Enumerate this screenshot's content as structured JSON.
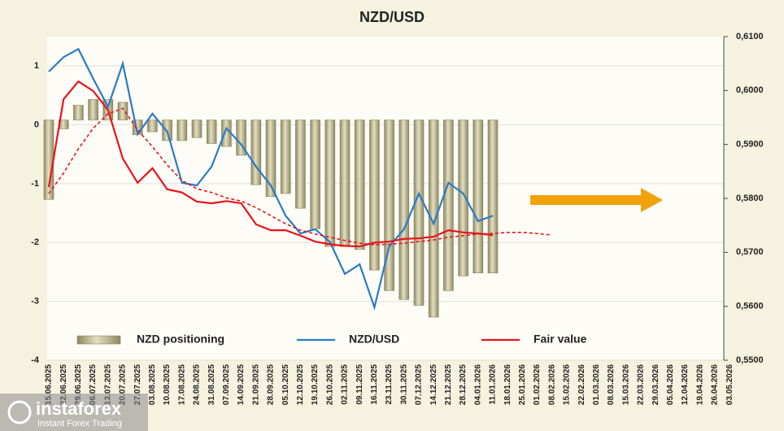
{
  "chart_data": {
    "type": "bar",
    "title": "NZD/USD",
    "categories": [
      "15.06.2025",
      "22.06.2025",
      "29.06.2025",
      "06.07.2025",
      "13.07.2025",
      "20.07.2025",
      "27.07.2025",
      "03.08.2025",
      "10.08.2025",
      "17.08.2025",
      "24.08.2025",
      "31.08.2025",
      "07.09.2025",
      "14.09.2025",
      "21.09.2025",
      "28.09.2025",
      "05.10.2025",
      "12.10.2025",
      "19.10.2025",
      "26.10.2025",
      "02.11.2025",
      "09.11.2025",
      "16.11.2025",
      "23.11.2025",
      "30.11.2025",
      "07.12.2025",
      "14.12.2025",
      "21.12.2025",
      "28.12.2025",
      "04.01.2026",
      "11.01.2026",
      "18.01.2026",
      "25.01.2026",
      "01.02.2026",
      "08.02.2026",
      "15.02.2026",
      "22.02.2026",
      "01.03.2026",
      "08.03.2026",
      "15.03.2026",
      "22.03.2026",
      "29.03.2026",
      "05.04.2026",
      "12.04.2026",
      "19.04.2026",
      "26.04.2026",
      "03.05.2026"
    ],
    "series": [
      {
        "name": "NZD positioning",
        "type": "bar",
        "color": "#c9c29c",
        "values": [
          -1.35,
          -0.15,
          0.25,
          0.35,
          0.35,
          0.3,
          -0.25,
          -0.2,
          -0.35,
          -0.35,
          -0.3,
          -0.4,
          -0.45,
          -0.6,
          -1.1,
          -1.3,
          -1.25,
          -1.5,
          -1.85,
          -2.15,
          -2.15,
          -2.2,
          -2.55,
          -2.9,
          -3.05,
          -3.15,
          -3.35,
          -2.9,
          -2.65,
          -2.6,
          -2.6,
          null,
          null,
          null,
          null,
          null,
          null,
          null,
          null,
          null,
          null,
          null,
          null,
          null,
          null,
          null,
          null
        ]
      },
      {
        "name": "NZD/USD",
        "type": "line",
        "axis": "y2",
        "color": "#2b7bc4",
        "values": [
          0.6035,
          0.6062,
          0.6077,
          0.6022,
          0.597,
          0.605,
          0.5919,
          0.5957,
          0.5924,
          0.5829,
          0.5824,
          0.5859,
          0.593,
          0.59,
          0.5859,
          0.5824,
          0.5768,
          0.5735,
          0.5743,
          0.5719,
          0.566,
          0.5678,
          0.5598,
          0.5711,
          0.5743,
          0.5809,
          0.5753,
          0.5829,
          0.5809,
          0.5758,
          0.5768,
          null,
          null,
          null,
          null,
          null,
          null,
          null,
          null,
          null,
          null,
          null,
          null,
          null,
          null,
          null,
          null
        ]
      },
      {
        "name": "Fair value",
        "type": "line",
        "axis": "y2",
        "color": "#e8141a",
        "values": [
          0.5821,
          0.5984,
          0.6017,
          0.5999,
          0.5964,
          0.5874,
          0.5829,
          0.5856,
          0.5817,
          0.5811,
          0.5794,
          0.5791,
          0.5795,
          0.5791,
          0.5752,
          0.5741,
          0.5741,
          0.5731,
          0.572,
          0.5715,
          0.5712,
          0.5711,
          0.5718,
          0.572,
          0.5725,
          0.5726,
          0.5729,
          0.5741,
          0.5737,
          0.5735,
          0.5732,
          null,
          null,
          null,
          null,
          null,
          null,
          null,
          null,
          null,
          null,
          null,
          null,
          null,
          null,
          null,
          null
        ]
      },
      {
        "type": "line",
        "axis": "y2",
        "color": "#e8141a",
        "line_style": "dashed",
        "values": [
          0.5809,
          0.5847,
          0.5892,
          0.593,
          0.5957,
          0.5967,
          0.5927,
          0.5896,
          0.5862,
          0.5833,
          0.5818,
          0.5811,
          0.5801,
          0.5795,
          0.5783,
          0.5768,
          0.5753,
          0.5741,
          0.5734,
          0.5728,
          0.5722,
          0.5717,
          0.5714,
          0.5715,
          0.5717,
          0.572,
          0.5723,
          0.5728,
          0.5731,
          0.5734,
          0.5735,
          0.5737,
          0.5737,
          0.5735,
          0.5732,
          null,
          null,
          null,
          null,
          null,
          null,
          null,
          null,
          null,
          null,
          null,
          null
        ]
      }
    ],
    "ylim": [
      -4,
      1.5
    ],
    "yticks": [
      -4,
      -3,
      -2,
      -1,
      0,
      1
    ],
    "y2lim": [
      0.55,
      0.61
    ],
    "y2ticks": [
      {
        "value": 0.55,
        "label": "0,5500"
      },
      {
        "value": 0.56,
        "label": "0,5600"
      },
      {
        "value": 0.57,
        "label": "0,5700"
      },
      {
        "value": 0.58,
        "label": "0,5800"
      },
      {
        "value": 0.59,
        "label": "0,5900"
      },
      {
        "value": 0.6,
        "label": "0,6000"
      },
      {
        "value": 0.61,
        "label": "0,6100"
      }
    ],
    "grid": true,
    "legend": "bottom"
  },
  "watermark": {
    "brand": "instaforex",
    "tagline": "Instant Forex Trading"
  }
}
